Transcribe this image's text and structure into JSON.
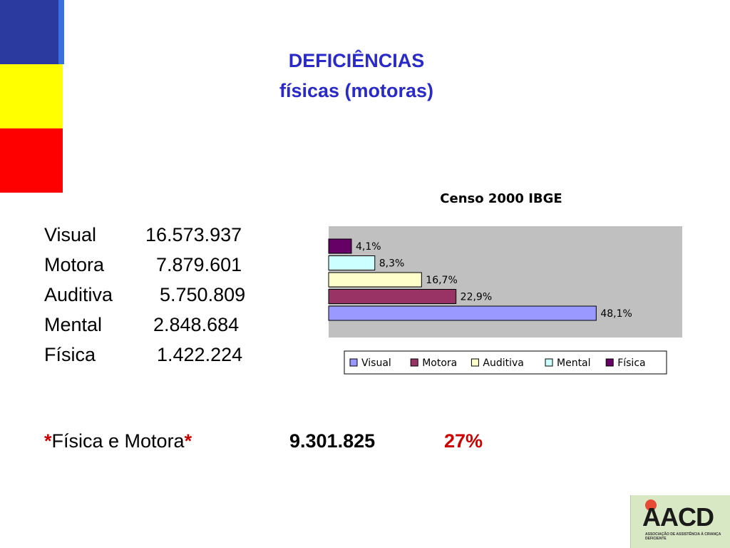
{
  "title": {
    "line1": "DEFICIÊNCIAS",
    "line2": "físicas (motoras)"
  },
  "stats": [
    {
      "label": "Visual",
      "value": "16.573.937"
    },
    {
      "label": "Motora",
      "value": "7.879.601"
    },
    {
      "label": "Auditiva",
      "value": "5.750.809"
    },
    {
      "label": "Mental",
      "value": "2.848.684"
    },
    {
      "label": "Física",
      "value": "1.422.224"
    }
  ],
  "summary": {
    "asterisk": "*",
    "label": "Física e Motora",
    "total": "9.301.825",
    "percent": "27%"
  },
  "logo": {
    "name": "AACD",
    "subtitle": "ASSOCIAÇÃO DE ASSISTÊNCIA À CRIANÇA DEFICIENTE"
  },
  "colors": {
    "stripe_blue": "#2b3a9e",
    "stripe_yellow": "#ffff00",
    "stripe_red": "#ff0000",
    "title": "#2a2ac8",
    "highlight": "#cc0000"
  },
  "chart_data": {
    "type": "bar",
    "orientation": "horizontal",
    "title": "Censo 2000 IBGE",
    "series": [
      {
        "name": "Visual",
        "value": 48.1,
        "label": "48,1%",
        "color": "#9999ff"
      },
      {
        "name": "Motora",
        "value": 22.9,
        "label": "22,9%",
        "color": "#993366"
      },
      {
        "name": "Auditiva",
        "value": 16.7,
        "label": "16,7%",
        "color": "#ffffcc"
      },
      {
        "name": "Mental",
        "value": 8.3,
        "label": "8,3%",
        "color": "#ccffff"
      },
      {
        "name": "Física",
        "value": 4.1,
        "label": "4,1%",
        "color": "#660066"
      }
    ],
    "xlim": [
      0,
      55
    ],
    "grid": false,
    "legend": "bottom",
    "background": "#c0c0c0"
  }
}
